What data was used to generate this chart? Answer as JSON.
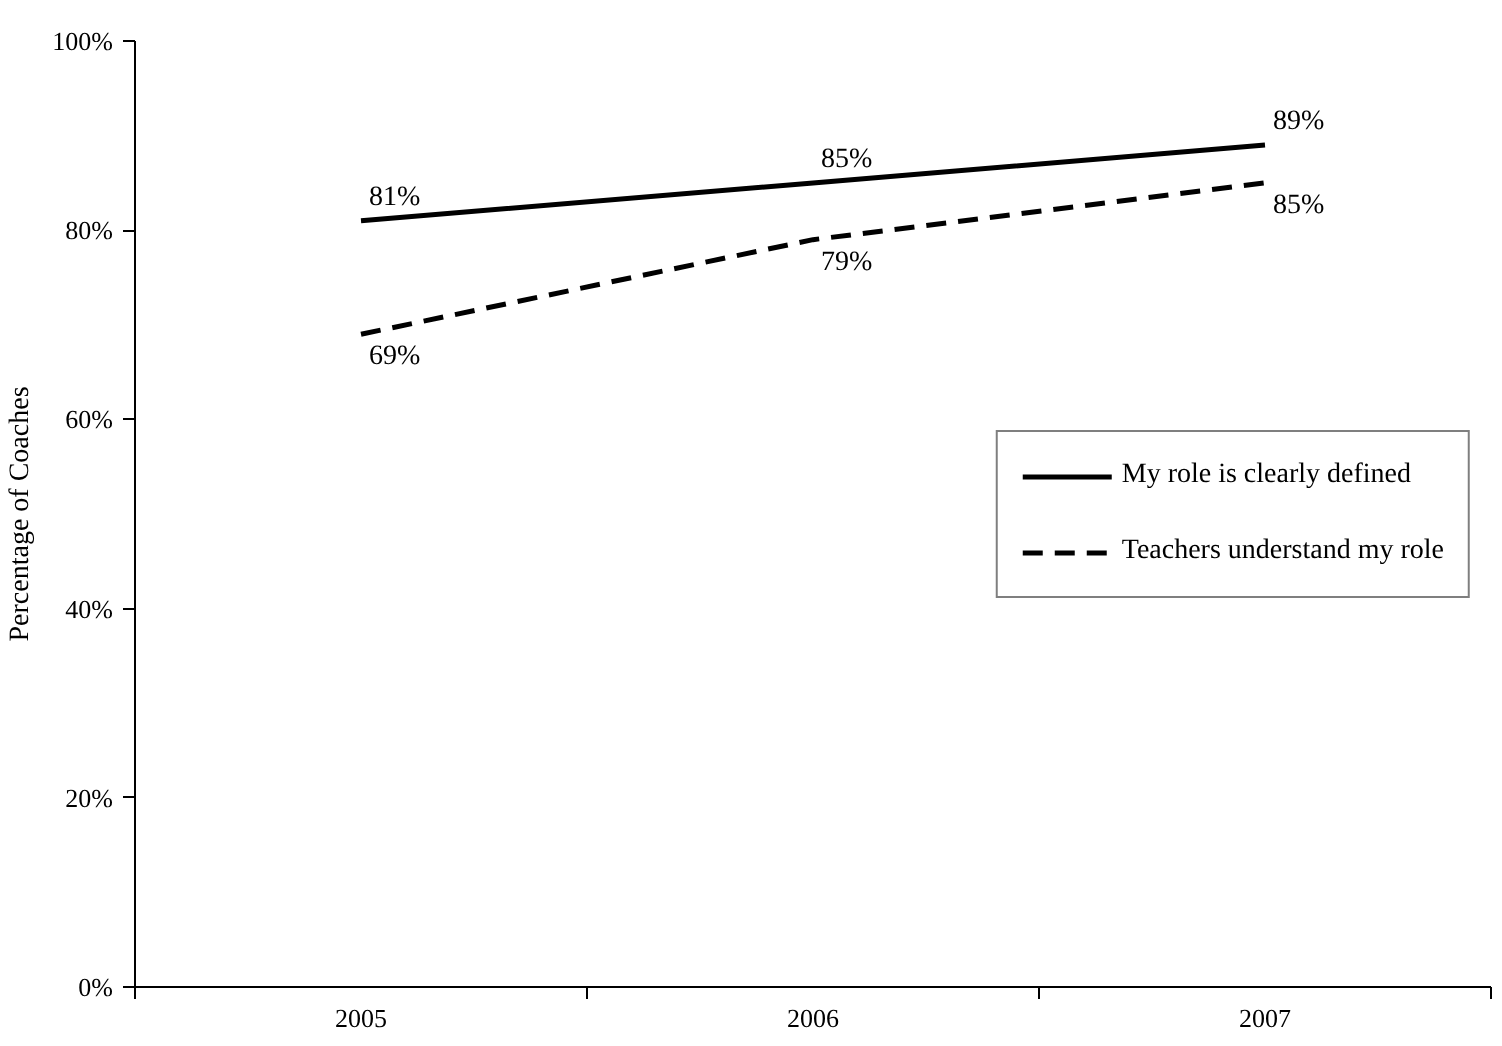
{
  "chart_data": {
    "type": "line",
    "ylabel": "Percentage of Coaches",
    "categories": [
      "2005",
      "2006",
      "2007"
    ],
    "series": [
      {
        "name": "My role is clearly defined",
        "color": "#000000",
        "line_style": "solid",
        "values": [
          81,
          85,
          89
        ],
        "value_labels": [
          "81%",
          "85%",
          "89%"
        ]
      },
      {
        "name": "Teachers understand my role",
        "color": "#000000",
        "line_style": "dashed",
        "values": [
          69,
          79,
          85
        ],
        "value_labels": [
          "69%",
          "79%",
          "85%"
        ]
      }
    ],
    "ylim": [
      0,
      100
    ],
    "yticks": [
      {
        "value": 0,
        "label": "0%"
      },
      {
        "value": 20,
        "label": "20%"
      },
      {
        "value": 40,
        "label": "40%"
      },
      {
        "value": 60,
        "label": "60%"
      },
      {
        "value": 80,
        "label": "80%"
      },
      {
        "value": 100,
        "label": "100%"
      }
    ],
    "legend": "right",
    "grid": false,
    "marker": "none"
  }
}
